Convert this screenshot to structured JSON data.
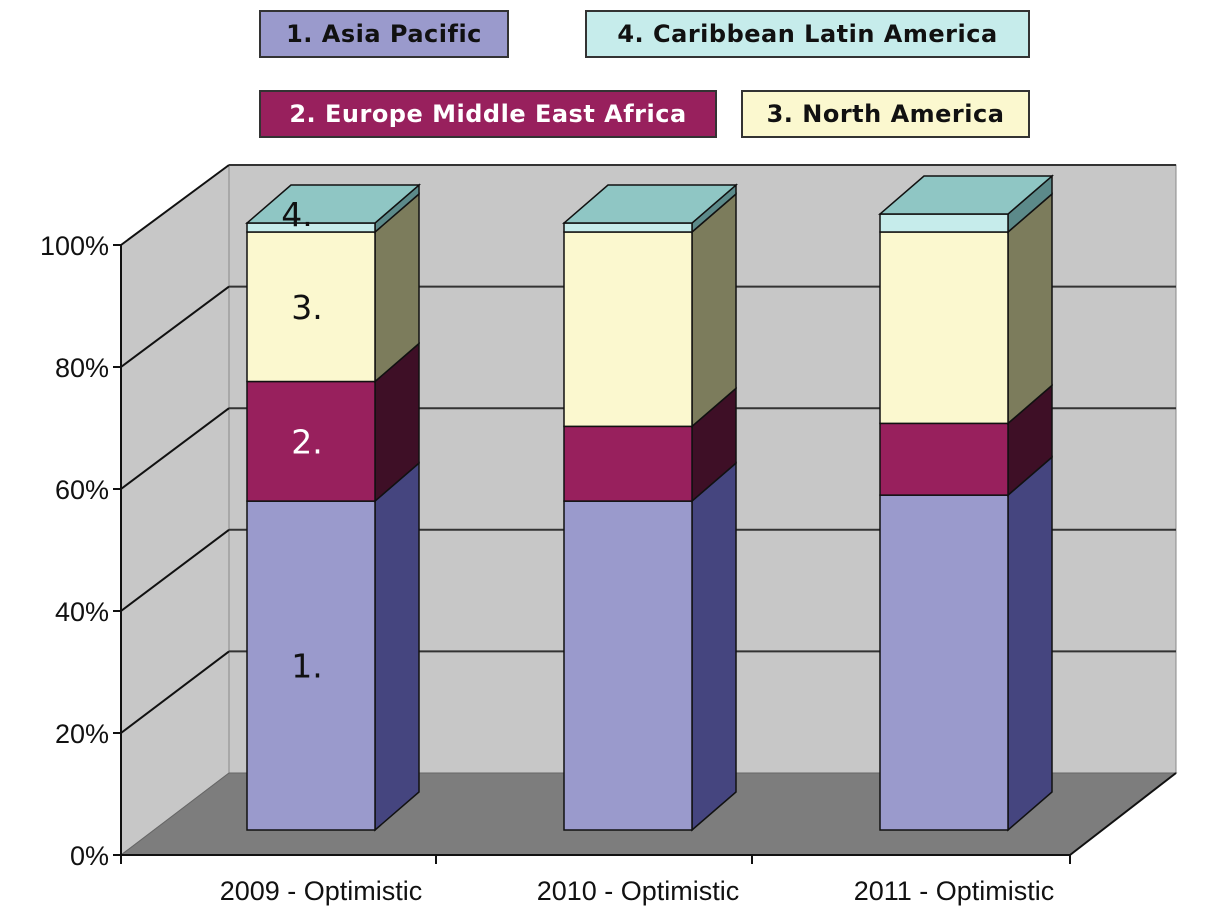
{
  "legend": {
    "items": [
      {
        "label": "1. Asia Pacific",
        "color": "#9a9acc",
        "text_color": "#111111"
      },
      {
        "label": "4. Caribbean Latin America",
        "color": "#c6eceb",
        "text_color": "#111111"
      },
      {
        "label": "2. Europe Middle East Africa",
        "color": "#98205d",
        "text_color": "#ffffff"
      },
      {
        "label": "3. North America",
        "color": "#fbf8cf",
        "text_color": "#111111"
      }
    ]
  },
  "chart_data": {
    "type": "bar",
    "stacked": true,
    "three_d": true,
    "categories": [
      "2009 - Optimistic",
      "2010 - Optimistic",
      "2011 - Optimistic"
    ],
    "series": [
      {
        "name": "1. Asia Pacific",
        "values": [
          55,
          55,
          56
        ],
        "color": "#9a9acc",
        "side_color": "#45457f"
      },
      {
        "name": "2. Europe Middle East Africa",
        "values": [
          20,
          12.5,
          12
        ],
        "color": "#98205d",
        "side_color": "#3e0f26"
      },
      {
        "name": "3. North America",
        "values": [
          25,
          32.5,
          32
        ],
        "color": "#fbf8cf",
        "side_color": "#7c7c5c"
      },
      {
        "name": "4. Caribbean Latin America",
        "values": [
          1.5,
          1.5,
          3
        ],
        "color": "#c6eceb",
        "side_color": "#5c8a8a"
      }
    ],
    "segment_labels": [
      "1.",
      "2.",
      "3.",
      "4."
    ],
    "yticks": [
      "0%",
      "20%",
      "40%",
      "60%",
      "80%",
      "100%"
    ],
    "ylim": [
      0,
      100
    ],
    "grid": true,
    "legend_position": "top"
  }
}
